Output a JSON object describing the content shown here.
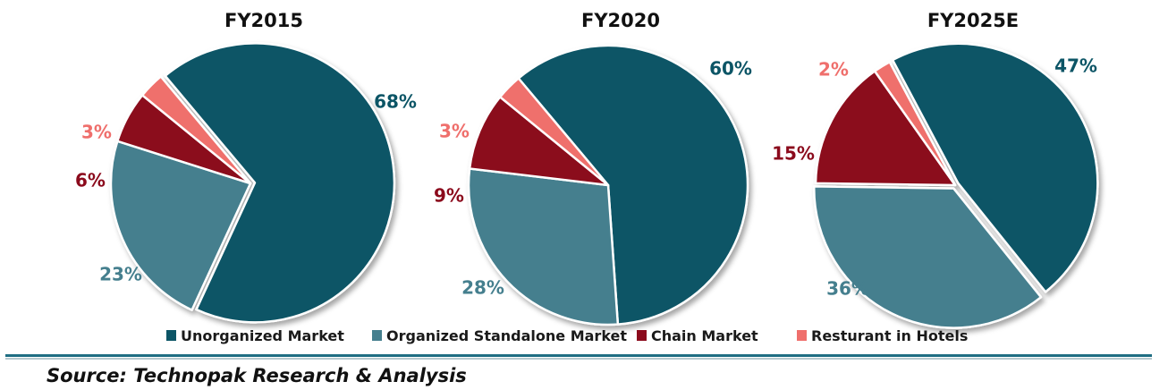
{
  "chart_data": [
    {
      "type": "pie",
      "title": "FY2015",
      "categories": [
        "Unorganized Market",
        "Organized Standalone Market",
        "Chain Market",
        "Resturant in Hotels"
      ],
      "values": [
        68,
        23,
        6,
        3
      ],
      "labels": [
        "68%",
        "23%",
        "6%",
        "3%"
      ]
    },
    {
      "type": "pie",
      "title": "FY2020",
      "categories": [
        "Unorganized Market",
        "Organized Standalone Market",
        "Chain Market",
        "Resturant in Hotels"
      ],
      "values": [
        60,
        28,
        9,
        3
      ],
      "labels": [
        "60%",
        "28%",
        "9%",
        "3%"
      ]
    },
    {
      "type": "pie",
      "title": "FY2025E",
      "categories": [
        "Unorganized Market",
        "Organized Standalone Market",
        "Chain Market",
        "Resturant in Hotels"
      ],
      "values": [
        47,
        36,
        15,
        2
      ],
      "labels": [
        "47%",
        "36%",
        "15%",
        "2%"
      ]
    }
  ],
  "legend": {
    "placement": "bottom",
    "items": [
      {
        "label": "Unorganized Market",
        "color": "#0c5566"
      },
      {
        "label": "Organized Standalone Market",
        "color": "#457f8e"
      },
      {
        "label": "Chain Market",
        "color": "#8b0a1c"
      },
      {
        "label": "Resturant in Hotels",
        "color": "#ef6f6c"
      }
    ]
  },
  "label_colors": [
    "#0c5566",
    "#457f8e",
    "#8b0a1c",
    "#ef6f6c"
  ],
  "source": "Source: Technopak Research & Analysis"
}
